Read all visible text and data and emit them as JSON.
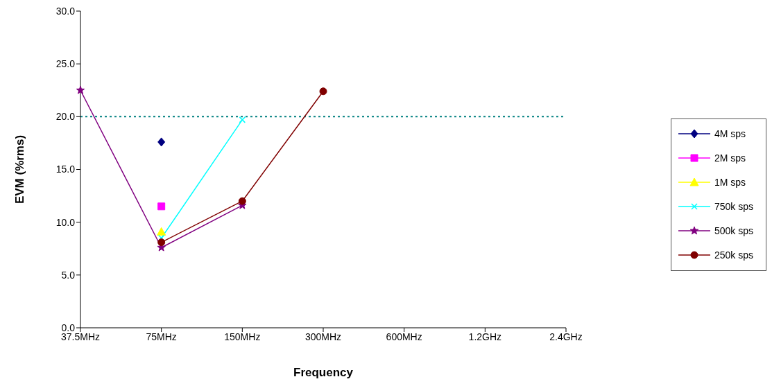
{
  "chart_data": {
    "type": "line",
    "xlabel": "Frequency",
    "ylabel": "EVM (%rms)",
    "categories": [
      "37.5MHz",
      "75MHz",
      "150MHz",
      "300MHz",
      "600MHz",
      "1.2GHz",
      "2.4GHz"
    ],
    "series": [
      {
        "name": "4M sps",
        "color": "#000080",
        "marker": "diamond",
        "values": [
          null,
          17.6,
          null,
          null,
          null,
          null,
          null
        ]
      },
      {
        "name": "2M sps",
        "color": "#ff00ff",
        "marker": "square",
        "values": [
          null,
          11.5,
          null,
          null,
          null,
          null,
          null
        ]
      },
      {
        "name": "1M sps",
        "color": "#ffff00",
        "marker": "triangle",
        "values": [
          null,
          9.1,
          null,
          null,
          null,
          null,
          null
        ]
      },
      {
        "name": "750k sps",
        "color": "#00ffff",
        "marker": "cross",
        "values": [
          null,
          8.5,
          19.7,
          null,
          null,
          null,
          null
        ]
      },
      {
        "name": "500k sps",
        "color": "#800080",
        "marker": "star",
        "values": [
          22.5,
          7.6,
          11.6,
          null,
          null,
          null,
          null
        ]
      },
      {
        "name": "250k sps",
        "color": "#800000",
        "marker": "circle",
        "values": [
          null,
          8.1,
          12.0,
          22.4,
          null,
          null,
          null
        ]
      }
    ],
    "ylim": [
      0,
      30
    ],
    "yticks": [
      {
        "value": 0,
        "label": "0.0"
      },
      {
        "value": 5,
        "label": "5.0"
      },
      {
        "value": 10,
        "label": "10.0"
      },
      {
        "value": 15,
        "label": "15.0"
      },
      {
        "value": 20,
        "label": "20.0"
      },
      {
        "value": 25,
        "label": "25.0"
      },
      {
        "value": 30,
        "label": "30.0"
      }
    ],
    "ref_lines": [
      {
        "axis": "y",
        "value": 20,
        "color": "#008080",
        "line_style": "dotted"
      }
    ],
    "grid": false,
    "legend": "right",
    "line_style": "solid"
  }
}
